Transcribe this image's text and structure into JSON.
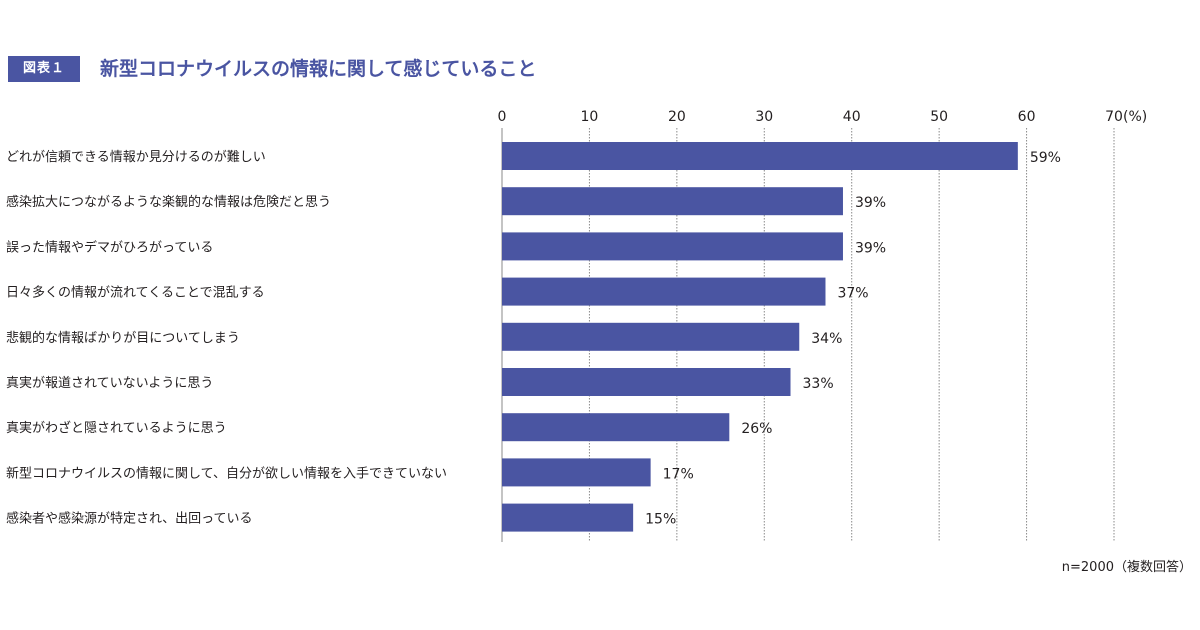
{
  "figure": {
    "badge": "図表１",
    "title": "新型コロナウイルスの情報に関して感じていること",
    "note": "n=2000（複数回答）"
  },
  "colors": {
    "bar": "#4a55a2",
    "grid": "#8a8a8a",
    "accent": "#4a55a2"
  },
  "chart_data": {
    "type": "bar",
    "orientation": "horizontal",
    "title": "新型コロナウイルスの情報に関して感じていること",
    "xlabel": "",
    "ylabel": "",
    "unit_label": "(%)",
    "xlim": [
      0,
      70
    ],
    "ticks": [
      0,
      10,
      20,
      30,
      40,
      50,
      60,
      70
    ],
    "grid": true,
    "categories": [
      "どれが信頼できる情報か見分けるのが難しい",
      "感染拡大につながるような楽観的な情報は危険だと思う",
      "誤った情報やデマがひろがっている",
      "日々多くの情報が流れてくることで混乱する",
      "悲観的な情報ばかりが目についてしまう",
      "真実が報道されていないように思う",
      "真実がわざと隠されているように思う",
      "新型コロナウイルスの情報に関して、自分が欲しい情報を入手できていない",
      "感染者や感染源が特定され、出回っている"
    ],
    "values": [
      59,
      39,
      39,
      37,
      34,
      33,
      26,
      17,
      15
    ],
    "value_labels": [
      "59%",
      "39%",
      "39%",
      "37%",
      "34%",
      "33%",
      "26%",
      "17%",
      "15%"
    ]
  }
}
